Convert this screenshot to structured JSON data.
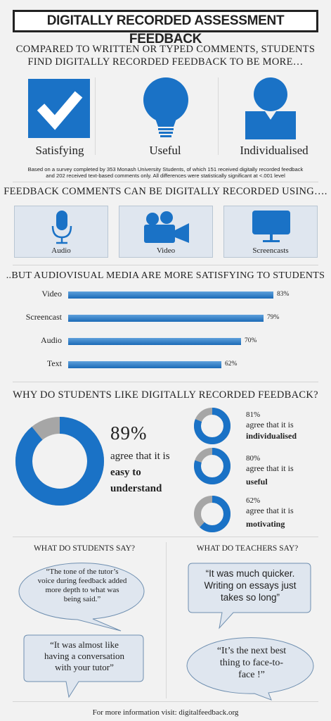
{
  "title": "DIGITALLY RECORDED ASSESSMENT FEEDBACK",
  "section1": {
    "heading_line1": "COMPARED TO WRITTEN OR TYPED COMMENTS, STUDENTS",
    "heading_line2": "FIND DIGITALLY RECORDED FEEDBACK TO BE MORE…",
    "items": [
      {
        "label": "Satisfying",
        "icon": "checkmark-icon"
      },
      {
        "label": "Useful",
        "icon": "lightbulb-icon"
      },
      {
        "label": "Individualised",
        "icon": "person-icon"
      }
    ],
    "note_line1": "Based on a survey completed by 353 Monash University Students, of which 151 received digitally recorded feedback",
    "note_line2": "and 202 received text-based comments only. All differences were statistically significant at <.001 level"
  },
  "section2": {
    "heading": "FEEDBACK COMMENTS CAN BE DIGITALLY RECORDED USING….",
    "media": [
      {
        "label": "Audio",
        "icon": "microphone-icon"
      },
      {
        "label": "Video",
        "icon": "video-camera-icon"
      },
      {
        "label": "Screencasts",
        "icon": "monitor-icon"
      }
    ]
  },
  "section3": {
    "heading": "..BUT AUDIOVISUAL MEDIA ARE MORE SATISFYING TO STUDENTS"
  },
  "chart_data": {
    "type": "bar",
    "orientation": "horizontal",
    "categories": [
      "Video",
      "Screencast",
      "Audio",
      "Text"
    ],
    "values": [
      83,
      79,
      70,
      62
    ],
    "value_labels": [
      "83%",
      "79%",
      "70%",
      "62%"
    ],
    "xlim": [
      0,
      100
    ]
  },
  "section4": {
    "heading": "WHY DO STUDENTS LIKE DIGITALLY RECORDED FEEDBACK?",
    "main": {
      "pct": "89%",
      "value": 89,
      "line1": "agree that it is",
      "line2": "easy to",
      "line3": "understand"
    },
    "items": [
      {
        "pct": "81%",
        "value": 81,
        "line1": "agree that it is",
        "line2": "individualised"
      },
      {
        "pct": "80%",
        "value": 80,
        "line1": "agree that it is",
        "line2": "useful"
      },
      {
        "pct": "62%",
        "value": 62,
        "line1": "agree that it is",
        "line2": "motivating"
      }
    ],
    "colors": {
      "fill": "#1a72c6",
      "rest": "#a6a6a6"
    }
  },
  "section5": {
    "students_heading": "WHAT DO STUDENTS SAY?",
    "teachers_heading": "WHAT DO TEACHERS SAY?",
    "student_quotes": [
      [
        "“The tone of the tutor’s",
        "voice during feedback added",
        "more depth to what was",
        "being said.”"
      ],
      [
        "“It was almost like",
        "having a conversation",
        "with your tutor”"
      ]
    ],
    "teacher_quotes": [
      [
        "“It was much quicker.",
        "Writing on essays just",
        "takes so long”"
      ],
      [
        "“It’s the next best",
        "thing to face-to-",
        "face !”"
      ]
    ]
  },
  "footer": "For more information visit: digitalfeedback.org"
}
